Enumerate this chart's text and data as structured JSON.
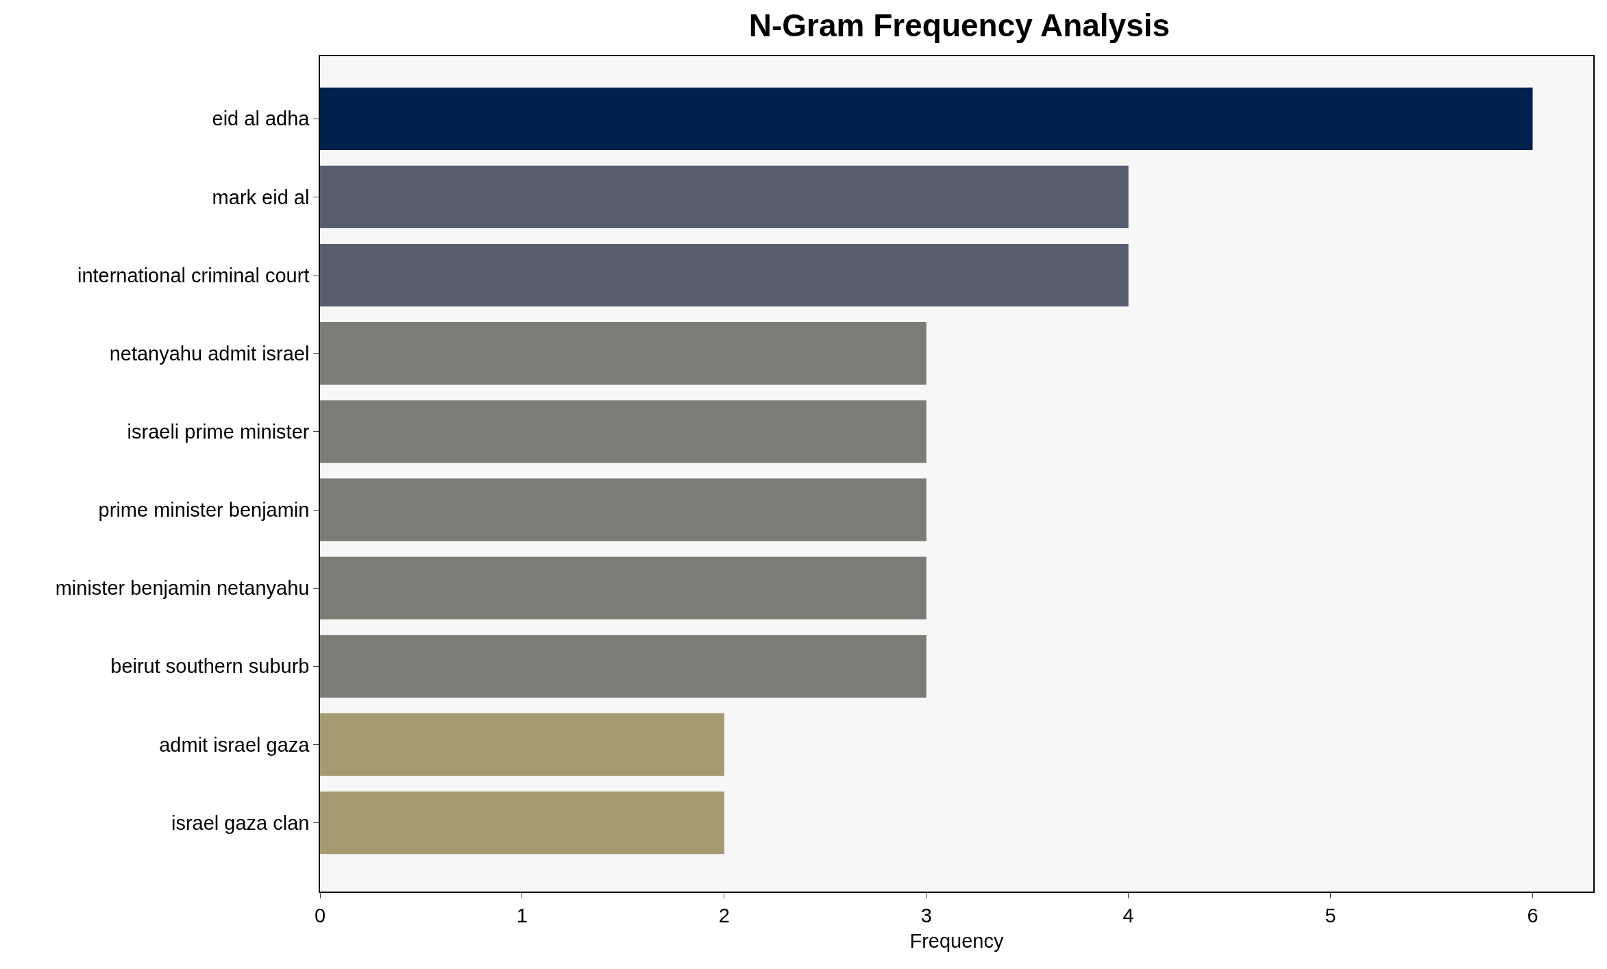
{
  "chart_data": {
    "type": "bar",
    "orientation": "horizontal",
    "title": "N-Gram Frequency Analysis",
    "xlabel": "Frequency",
    "categories": [
      "eid al adha",
      "mark eid al",
      "international criminal court",
      "netanyahu admit israel",
      "israeli prime minister",
      "prime minister benjamin",
      "minister benjamin netanyahu",
      "beirut southern suburb",
      "admit israel gaza",
      "israel gaza clan"
    ],
    "values": [
      6,
      4,
      4,
      3,
      3,
      3,
      3,
      3,
      2,
      2
    ],
    "colors": [
      "#00214d",
      "#575e6e",
      "#575e6e",
      "#7c7b76",
      "#7c7b76",
      "#7c7b76",
      "#7c7b76",
      "#7c7b76",
      "#a59b71",
      "#a59b71"
    ],
    "xlim": [
      0,
      6.3
    ],
    "xticks": [
      0,
      1,
      2,
      3,
      4,
      5,
      6
    ],
    "grid": false
  }
}
